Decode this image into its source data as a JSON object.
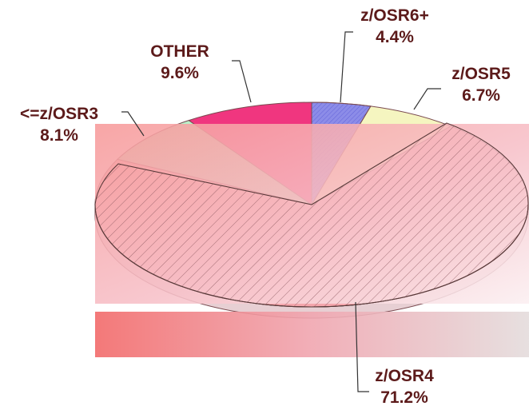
{
  "chart_data": {
    "type": "pie",
    "title": "",
    "slices": [
      {
        "label": "z/OSR6+",
        "value": 4.4,
        "value_text": "4.4%",
        "color": "#8c8ce8"
      },
      {
        "label": "z/OSR5",
        "value": 6.7,
        "value_text": "6.7%",
        "color": "#f5f5c0"
      },
      {
        "label": "z/OSR4",
        "value": 71.2,
        "value_text": "71.2%",
        "color": "#f4a6ac"
      },
      {
        "label": "<=z/OSR3",
        "value": 8.1,
        "value_text": "8.1%",
        "color": "#b8efc8"
      },
      {
        "label": "OTHER",
        "value": 9.6,
        "value_text": "9.6%",
        "color": "#f0367f"
      }
    ],
    "style": "3d-pie",
    "legend": "none",
    "data_labels": "outside-with-leader-lines"
  }
}
